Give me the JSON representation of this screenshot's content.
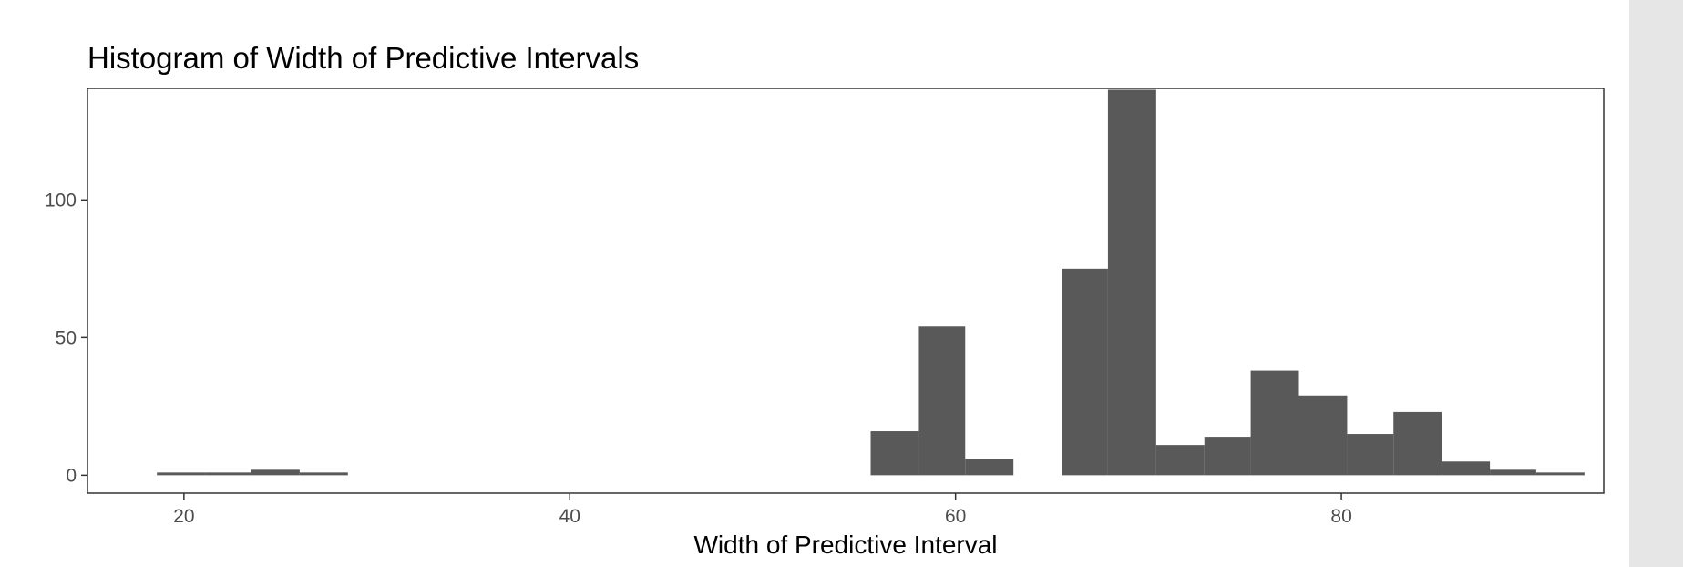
{
  "chart_data": {
    "type": "histogram",
    "title": "Histogram of Width of Predictive Intervals",
    "xlabel": "Width of Predictive Interval",
    "ylabel": "",
    "xlim": [
      15.0,
      93.6
    ],
    "ylim": [
      -6.5,
      140.5
    ],
    "x_ticks": [
      {
        "value": 20,
        "label": "20"
      },
      {
        "value": 40,
        "label": "40"
      },
      {
        "value": 60,
        "label": "60"
      },
      {
        "value": 80,
        "label": "80"
      }
    ],
    "y_ticks": [
      {
        "value": 0,
        "label": "0"
      },
      {
        "value": 50,
        "label": "50"
      },
      {
        "value": 100,
        "label": "100"
      }
    ],
    "grid": false,
    "bin_width": 2.47,
    "bins": [
      {
        "x0": 18.6,
        "x1": 21.1,
        "count": 1
      },
      {
        "x0": 21.1,
        "x1": 23.5,
        "count": 1
      },
      {
        "x0": 23.5,
        "x1": 26.0,
        "count": 2
      },
      {
        "x0": 26.0,
        "x1": 28.5,
        "count": 1
      },
      {
        "x0": 55.6,
        "x1": 58.1,
        "count": 16
      },
      {
        "x0": 58.1,
        "x1": 60.5,
        "count": 54
      },
      {
        "x0": 60.5,
        "x1": 63.0,
        "count": 6
      },
      {
        "x0": 65.5,
        "x1": 67.9,
        "count": 75
      },
      {
        "x0": 67.9,
        "x1": 70.4,
        "count": 140
      },
      {
        "x0": 70.4,
        "x1": 72.9,
        "count": 11
      },
      {
        "x0": 72.9,
        "x1": 75.3,
        "count": 14
      },
      {
        "x0": 75.3,
        "x1": 77.8,
        "count": 38
      },
      {
        "x0": 77.8,
        "x1": 80.3,
        "count": 29
      },
      {
        "x0": 80.3,
        "x1": 82.7,
        "count": 15
      },
      {
        "x0": 82.7,
        "x1": 85.2,
        "count": 23
      },
      {
        "x0": 85.2,
        "x1": 87.7,
        "count": 5
      },
      {
        "x0": 87.7,
        "x1": 90.1,
        "count": 2
      },
      {
        "x0": 90.1,
        "x1": 92.6,
        "count": 1
      }
    ],
    "colors": {
      "bar": "#595959",
      "panel_border": "#333333",
      "tick": "#4d4d4d",
      "background": "#ffffff"
    }
  }
}
